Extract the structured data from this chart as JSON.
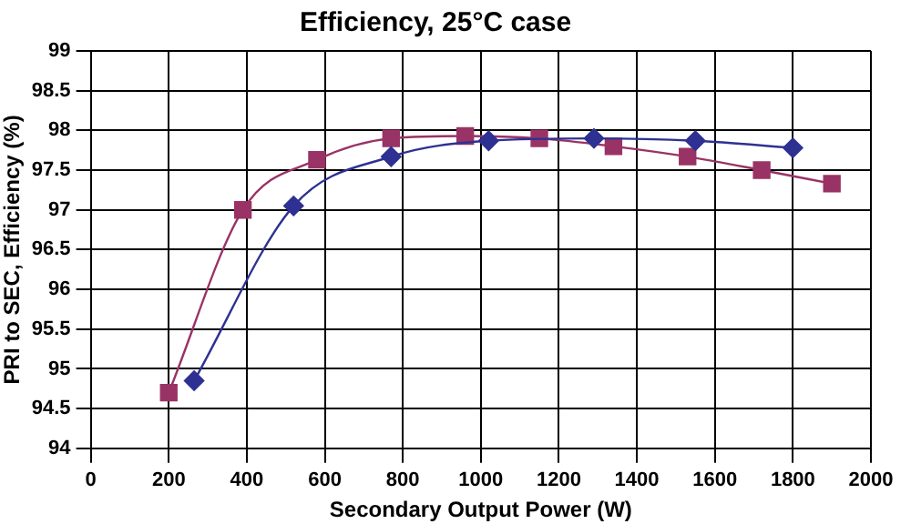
{
  "chart_data": {
    "type": "line",
    "title": "Efficiency, 25°C case",
    "xlabel": "Secondary Output Power (W)",
    "ylabel": "PRI to SEC, Efficiency (%)",
    "xlim": [
      0,
      2000
    ],
    "xticks": [
      0,
      200,
      400,
      600,
      800,
      1000,
      1200,
      1400,
      1600,
      1800,
      2000
    ],
    "ylim": [
      94,
      99
    ],
    "yticks": [
      94,
      94.5,
      95,
      95.5,
      96,
      96.5,
      97,
      97.5,
      98,
      98.5,
      99
    ],
    "grid": true,
    "legend": false,
    "series": [
      {
        "color": "#2e3192",
        "marker": "diamond",
        "x": [
          265,
          520,
          770,
          1020,
          1290,
          1550,
          1800
        ],
        "values": [
          94.85,
          97.05,
          97.67,
          97.87,
          97.9,
          97.87,
          97.78
        ]
      },
      {
        "color": "#993366",
        "marker": "square",
        "x": [
          200,
          390,
          580,
          770,
          960,
          1150,
          1340,
          1530,
          1720,
          1900
        ],
        "values": [
          94.7,
          97.0,
          97.63,
          97.9,
          97.93,
          97.9,
          97.8,
          97.67,
          97.5,
          97.33
        ]
      }
    ]
  }
}
